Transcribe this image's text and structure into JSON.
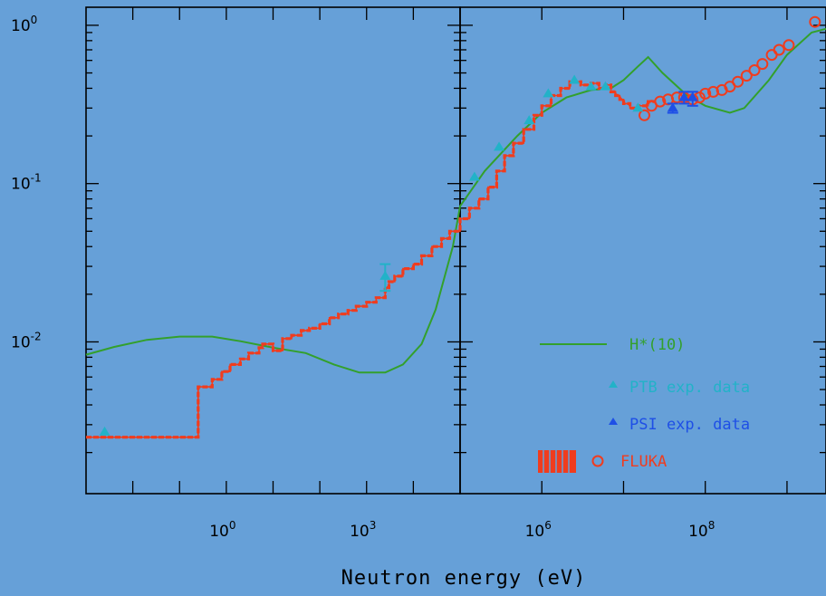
{
  "chart_data": {
    "type": "line",
    "xlabel": "Neutron energy (eV)",
    "ylabel": "",
    "x_scale": "log",
    "y_scale": "log",
    "panels": [
      {
        "name": "left",
        "xlim": [
          0.001,
          100000
        ],
        "x_ticks": [
          1,
          1000
        ]
      },
      {
        "name": "right",
        "xlim": [
          100000,
          3000000000
        ],
        "x_ticks": [
          1000000,
          100000000
        ]
      }
    ],
    "ylim": [
      0.0011,
      1.3
    ],
    "x_tick_labels": [
      {
        "base": "10",
        "exp": "0",
        "x": 1
      },
      {
        "base": "10",
        "exp": "3",
        "x": 1000
      },
      {
        "base": "10",
        "exp": "6",
        "x": 1000000
      },
      {
        "base": "10",
        "exp": "8",
        "x": 100000000
      }
    ],
    "y_tick_labels": [
      {
        "base": "10",
        "exp": "0",
        "y": 1
      },
      {
        "base": "10",
        "exp": "-1",
        "y": 0.1
      },
      {
        "base": "10",
        "exp": "-2",
        "y": 0.01
      }
    ],
    "series": [
      {
        "name": "H*(10)",
        "style": "line",
        "color": "#33a02c",
        "points": [
          [
            0.001,
            0.0083
          ],
          [
            0.004,
            0.0093
          ],
          [
            0.02,
            0.0103
          ],
          [
            0.1,
            0.0108
          ],
          [
            0.5,
            0.0108
          ],
          [
            2,
            0.0101
          ],
          [
            10,
            0.0092
          ],
          [
            50,
            0.0085
          ],
          [
            200,
            0.0072
          ],
          [
            700,
            0.0064
          ],
          [
            2500,
            0.0064
          ],
          [
            6000,
            0.0072
          ],
          [
            15000,
            0.0097
          ],
          [
            30000,
            0.016
          ],
          [
            70000,
            0.04
          ],
          [
            100000,
            0.072
          ],
          [
            200000,
            0.12
          ],
          [
            500000,
            0.2
          ],
          [
            1000000,
            0.28
          ],
          [
            2000000,
            0.35
          ],
          [
            4000000,
            0.39
          ],
          [
            7000000,
            0.4
          ],
          [
            10000000,
            0.45
          ],
          [
            15000000,
            0.55
          ],
          [
            20000000,
            0.63
          ],
          [
            30000000,
            0.5
          ],
          [
            60000000,
            0.36
          ],
          [
            100000000,
            0.31
          ],
          [
            200000000,
            0.28
          ],
          [
            300000000,
            0.3
          ],
          [
            600000000,
            0.45
          ],
          [
            1000000000,
            0.65
          ],
          [
            2000000000,
            0.9
          ],
          [
            3000000000,
            0.95
          ]
        ]
      },
      {
        "name": "PTB exp. data",
        "style": "triangle",
        "color": "#22b2c8",
        "points": [
          [
            0.0025,
            0.0027
          ],
          [
            2500,
            0.026
          ],
          [
            150000,
            0.11
          ],
          [
            300000,
            0.17
          ],
          [
            700000,
            0.25
          ],
          [
            1200000,
            0.37
          ],
          [
            2500000,
            0.45
          ],
          [
            4000000,
            0.41
          ],
          [
            6000000,
            0.41
          ],
          [
            15000000,
            0.3
          ]
        ],
        "errors": [
          [
            2500,
            0.021,
            0.031
          ]
        ]
      },
      {
        "name": "PSI exp. data",
        "style": "triangle",
        "color": "#1e4fe6",
        "points": [
          [
            40000000,
            0.3
          ],
          [
            55000000,
            0.35
          ],
          [
            70000000,
            0.35
          ]
        ],
        "errors": [
          [
            40000000,
            0.28,
            0.32
          ],
          [
            55000000,
            0.32,
            0.38
          ],
          [
            70000000,
            0.31,
            0.38
          ]
        ]
      },
      {
        "name": "FLUKA",
        "style": "step-band + circles",
        "color": "#f03c1e",
        "steps": [
          [
            0.001,
            0.0025
          ],
          [
            0.25,
            0.0025
          ],
          [
            0.25,
            0.0052
          ],
          [
            0.5,
            0.0052
          ],
          [
            0.5,
            0.0058
          ],
          [
            0.8,
            0.0058
          ],
          [
            0.8,
            0.0065
          ],
          [
            1.2,
            0.0065
          ],
          [
            1.2,
            0.0072
          ],
          [
            2,
            0.0072
          ],
          [
            2,
            0.0078
          ],
          [
            3,
            0.0078
          ],
          [
            3,
            0.0085
          ],
          [
            5,
            0.0085
          ],
          [
            5,
            0.0092
          ],
          [
            6,
            0.0092
          ],
          [
            6,
            0.0097
          ],
          [
            10,
            0.0097
          ],
          [
            10,
            0.0088
          ],
          [
            16,
            0.0088
          ],
          [
            16,
            0.0105
          ],
          [
            25,
            0.0105
          ],
          [
            25,
            0.011
          ],
          [
            40,
            0.011
          ],
          [
            40,
            0.0118
          ],
          [
            60,
            0.0118
          ],
          [
            60,
            0.0122
          ],
          [
            100,
            0.0122
          ],
          [
            100,
            0.013
          ],
          [
            160,
            0.013
          ],
          [
            160,
            0.0142
          ],
          [
            250,
            0.0142
          ],
          [
            250,
            0.015
          ],
          [
            400,
            0.015
          ],
          [
            400,
            0.0158
          ],
          [
            600,
            0.0158
          ],
          [
            600,
            0.0168
          ],
          [
            1000,
            0.0168
          ],
          [
            1000,
            0.0178
          ],
          [
            1600,
            0.0178
          ],
          [
            1600,
            0.019
          ],
          [
            2500,
            0.019
          ],
          [
            2500,
            0.022
          ],
          [
            3000,
            0.022
          ],
          [
            3000,
            0.024
          ],
          [
            4000,
            0.024
          ],
          [
            4000,
            0.026
          ],
          [
            6000,
            0.026
          ],
          [
            6000,
            0.029
          ],
          [
            10000,
            0.029
          ],
          [
            10000,
            0.031
          ],
          [
            15000,
            0.031
          ],
          [
            15000,
            0.035
          ],
          [
            25000,
            0.035
          ],
          [
            25000,
            0.04
          ],
          [
            40000,
            0.04
          ],
          [
            40000,
            0.045
          ],
          [
            60000,
            0.045
          ],
          [
            60000,
            0.05
          ],
          [
            100000,
            0.05
          ],
          [
            100000,
            0.06
          ],
          [
            130000,
            0.06
          ],
          [
            130000,
            0.07
          ],
          [
            170000,
            0.07
          ],
          [
            170000,
            0.08
          ],
          [
            220000,
            0.08
          ],
          [
            220000,
            0.095
          ],
          [
            280000,
            0.095
          ],
          [
            280000,
            0.12
          ],
          [
            350000,
            0.12
          ],
          [
            350000,
            0.15
          ],
          [
            450000,
            0.15
          ],
          [
            450000,
            0.18
          ],
          [
            600000,
            0.18
          ],
          [
            600000,
            0.22
          ],
          [
            800000,
            0.22
          ],
          [
            800000,
            0.27
          ],
          [
            1000000,
            0.27
          ],
          [
            1000000,
            0.31
          ],
          [
            1300000,
            0.31
          ],
          [
            1300000,
            0.36
          ],
          [
            1700000,
            0.36
          ],
          [
            1700000,
            0.4
          ],
          [
            2200000,
            0.4
          ],
          [
            2200000,
            0.44
          ],
          [
            3000000,
            0.44
          ],
          [
            3000000,
            0.42
          ],
          [
            4000000,
            0.42
          ],
          [
            4000000,
            0.43
          ],
          [
            5000000,
            0.43
          ],
          [
            5000000,
            0.4
          ],
          [
            6000000,
            0.4
          ],
          [
            6000000,
            0.42
          ],
          [
            7000000,
            0.42
          ],
          [
            7000000,
            0.38
          ],
          [
            8000000,
            0.38
          ],
          [
            8000000,
            0.36
          ],
          [
            9000000,
            0.36
          ],
          [
            9000000,
            0.34
          ],
          [
            10000000,
            0.34
          ],
          [
            10000000,
            0.32
          ],
          [
            12000000,
            0.32
          ],
          [
            12000000,
            0.3
          ],
          [
            15000000,
            0.3
          ],
          [
            15000000,
            0.31
          ],
          [
            20000000,
            0.31
          ],
          [
            20000000,
            0.33
          ],
          [
            25000000,
            0.33
          ]
        ],
        "circles": [
          [
            18000000,
            0.27
          ],
          [
            22000000,
            0.31
          ],
          [
            28000000,
            0.33
          ],
          [
            35000000,
            0.34
          ],
          [
            45000000,
            0.35
          ],
          [
            55000000,
            0.35
          ],
          [
            70000000,
            0.34
          ],
          [
            85000000,
            0.35
          ],
          [
            100000000,
            0.37
          ],
          [
            125000000,
            0.38
          ],
          [
            160000000,
            0.39
          ],
          [
            200000000,
            0.41
          ],
          [
            250000000,
            0.44
          ],
          [
            320000000,
            0.48
          ],
          [
            400000000,
            0.52
          ],
          [
            500000000,
            0.57
          ],
          [
            650000000,
            0.65
          ],
          [
            800000000,
            0.7
          ],
          [
            1050000000,
            0.75
          ],
          [
            2200000000,
            1.05
          ]
        ]
      }
    ]
  },
  "legend": {
    "placement": "lower-right",
    "items": [
      {
        "label": "H*(10)",
        "color": "#33a02c"
      },
      {
        "label": "PTB exp. data",
        "color": "#22b2c8"
      },
      {
        "label": "PSI exp. data",
        "color": "#1e4fe6"
      },
      {
        "label": "FLUKA",
        "color": "#f03c1e"
      }
    ]
  }
}
